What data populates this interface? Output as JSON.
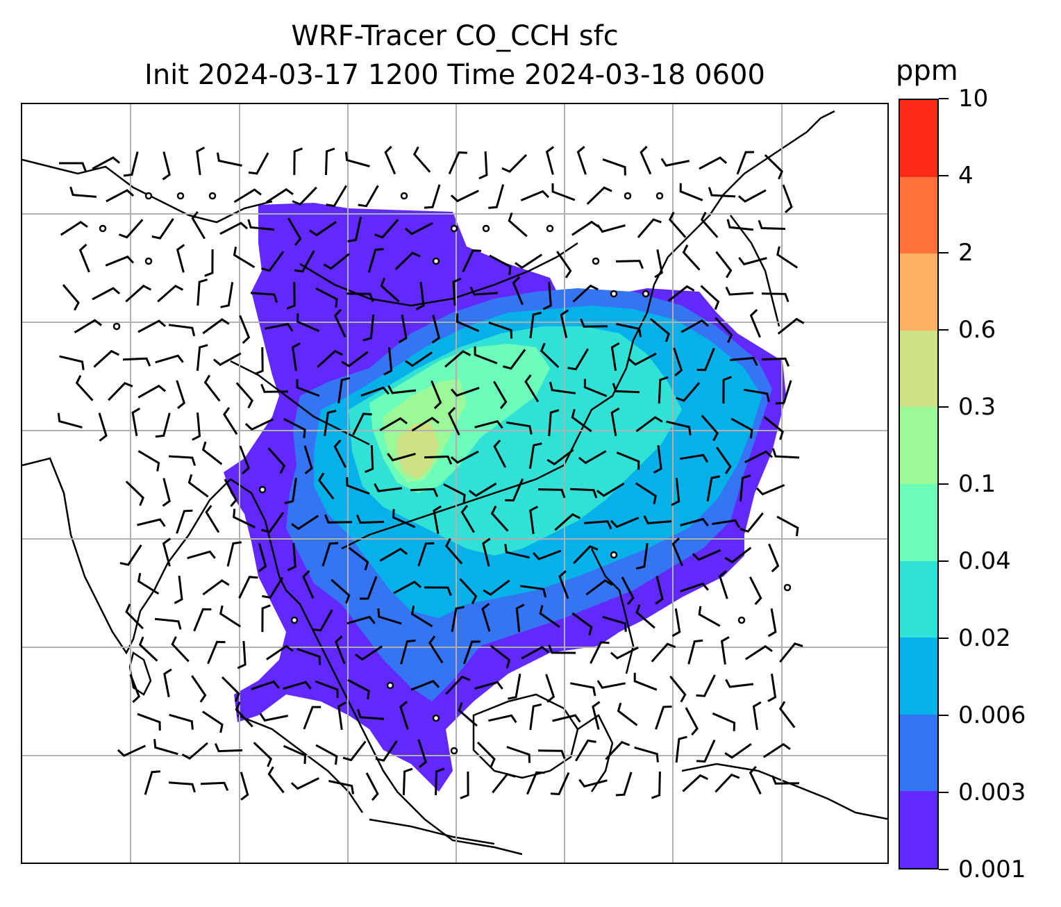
{
  "title_line1": "WRF-Tracer CO_CCH sfc",
  "title_line2": "Init 2024-03-17 1200 Time 2024-03-18 0600",
  "colorbar": {
    "unit": "ppm",
    "levels": [
      "0.001",
      "0.003",
      "0.006",
      "0.02",
      "0.04",
      "0.1",
      "0.3",
      "0.6",
      "2",
      "4",
      "10"
    ],
    "colors": [
      "#6129fb",
      "#3574f3",
      "#06b1ea",
      "#31e1d5",
      "#6cfdba",
      "#9cf99a",
      "#cfe185",
      "#ffb062",
      "#ff7239",
      "#ff2a17"
    ]
  },
  "map": {
    "gridlines": true,
    "field": "CO_CCH surface concentration",
    "features": [
      "coastlines",
      "country-borders",
      "wind-barbs",
      "calm-circles"
    ]
  }
}
